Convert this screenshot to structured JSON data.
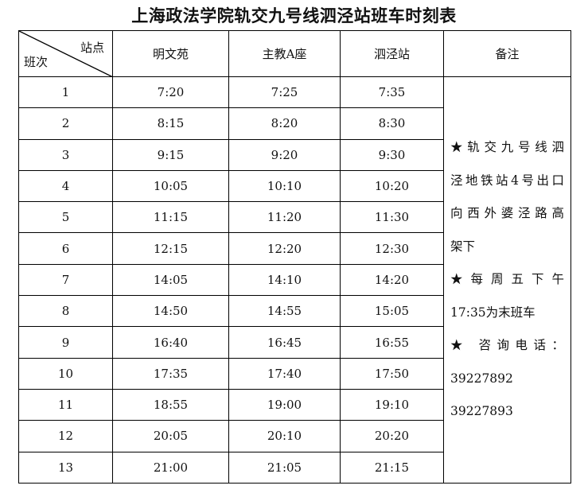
{
  "title": "上海政法学院轨交九号线泗泾站班车时刻表",
  "header": {
    "corner_station": "站点",
    "corner_run": "班次",
    "columns": [
      "明文苑",
      "主教A座",
      "泗泾站"
    ],
    "notes": "备注"
  },
  "rows": [
    {
      "run": "1",
      "times": [
        "7:20",
        "7:25",
        "7:35"
      ]
    },
    {
      "run": "2",
      "times": [
        "8:15",
        "8:20",
        "8:30"
      ]
    },
    {
      "run": "3",
      "times": [
        "9:15",
        "9:20",
        "9:30"
      ]
    },
    {
      "run": "4",
      "times": [
        "10:05",
        "10:10",
        "10:20"
      ]
    },
    {
      "run": "5",
      "times": [
        "11:15",
        "11:20",
        "11:30"
      ]
    },
    {
      "run": "6",
      "times": [
        "12:15",
        "12:20",
        "12:30"
      ]
    },
    {
      "run": "7",
      "times": [
        "14:05",
        "14:10",
        "14:20"
      ]
    },
    {
      "run": "8",
      "times": [
        "14:50",
        "14:55",
        "15:05"
      ]
    },
    {
      "run": "9",
      "times": [
        "16:40",
        "16:45",
        "16:55"
      ]
    },
    {
      "run": "10",
      "times": [
        "17:35",
        "17:40",
        "17:50"
      ]
    },
    {
      "run": "11",
      "times": [
        "18:55",
        "19:00",
        "19:10"
      ]
    },
    {
      "run": "12",
      "times": [
        "20:05",
        "20:10",
        "20:20"
      ]
    },
    {
      "run": "13",
      "times": [
        "21:00",
        "21:05",
        "21:15"
      ]
    }
  ],
  "notes": {
    "lines": [
      "★轨交九号线泗",
      "泾地铁站4号出口",
      "向西外婆泾路高",
      "架下",
      "★每周五下午",
      "17:35为末班车",
      "★ 咨询电话：",
      "39227892",
      "39227893"
    ]
  }
}
